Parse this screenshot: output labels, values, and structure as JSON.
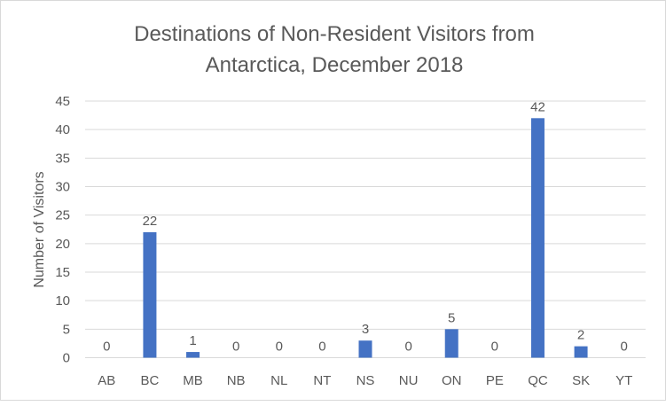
{
  "chart_data": {
    "type": "bar",
    "title_lines": [
      "Destinations of Non-Resident Visitors from",
      "Antarctica, December 2018"
    ],
    "xlabel": "",
    "ylabel": "Number of Visitors",
    "categories": [
      "AB",
      "BC",
      "MB",
      "NB",
      "NL",
      "NT",
      "NS",
      "NU",
      "ON",
      "PE",
      "QC",
      "SK",
      "YT"
    ],
    "values": [
      0,
      22,
      1,
      0,
      0,
      0,
      3,
      0,
      5,
      0,
      42,
      2,
      0
    ],
    "ylim": [
      0,
      45
    ],
    "yticks": [
      0,
      5,
      10,
      15,
      20,
      25,
      30,
      35,
      40,
      45
    ],
    "grid": true,
    "legend": "none",
    "data_labels": true,
    "bar_color": "#4472c4"
  }
}
